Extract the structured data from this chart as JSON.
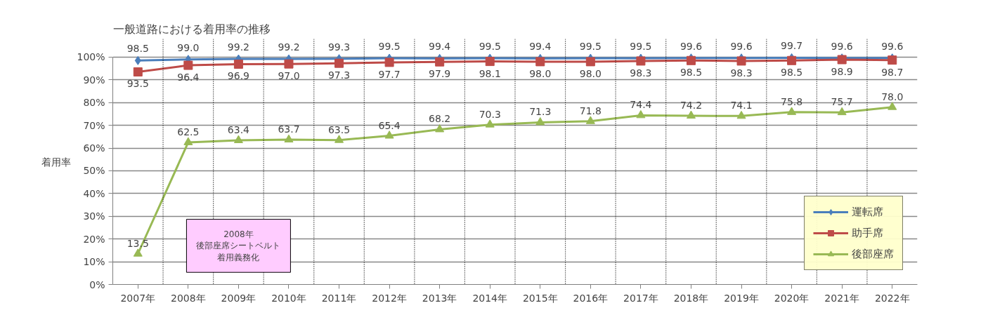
{
  "chart_data": {
    "type": "line",
    "title": "一般道路における着用率の推移",
    "ylabel": "着用率",
    "categories": [
      "2007年",
      "2008年",
      "2009年",
      "2010年",
      "2011年",
      "2012年",
      "2013年",
      "2014年",
      "2015年",
      "2016年",
      "2017年",
      "2018年",
      "2019年",
      "2020年",
      "2021年",
      "2022年"
    ],
    "series": [
      {
        "name": "運転席",
        "color": "#4a7ebb",
        "marker": "diamond",
        "values": [
          98.5,
          99.0,
          99.2,
          99.2,
          99.3,
          99.5,
          99.4,
          99.5,
          99.4,
          99.5,
          99.5,
          99.6,
          99.6,
          99.7,
          99.6,
          99.6
        ],
        "value_labels": [
          "98.5",
          "99.0",
          "99.2",
          "99.2",
          "99.3",
          "99.5",
          "99.4",
          "99.5",
          "99.4",
          "99.5",
          "99.5",
          "99.6",
          "99.6",
          "99.7",
          "99.6",
          "99.6"
        ]
      },
      {
        "name": "助手席",
        "color": "#be4b48",
        "marker": "square",
        "values": [
          93.5,
          96.4,
          96.9,
          97.0,
          97.3,
          97.7,
          97.9,
          98.1,
          98.0,
          98.0,
          98.3,
          98.5,
          98.3,
          98.5,
          98.9,
          98.7
        ],
        "value_labels": [
          "93.5",
          "96.4",
          "96.9",
          "97.0",
          "97.3",
          "97.7",
          "97.9",
          "98.1",
          "98.0",
          "98.0",
          "98.3",
          "98.5",
          "98.3",
          "98.5",
          "98.9",
          "98.7"
        ]
      },
      {
        "name": "後部座席",
        "color": "#98b954",
        "marker": "triangle",
        "values": [
          13.5,
          62.5,
          63.4,
          63.7,
          63.5,
          65.4,
          68.2,
          70.3,
          71.3,
          71.8,
          74.4,
          74.2,
          74.1,
          75.8,
          75.7,
          78.0
        ],
        "value_labels": [
          "13.5",
          "62.5",
          "63.4",
          "63.7",
          "63.5",
          "65.4",
          "68.2",
          "70.3",
          "71.3",
          "71.8",
          "74.4",
          "74.2",
          "74.1",
          "75.8",
          "75.7",
          "78.0"
        ]
      }
    ],
    "ylim": [
      0,
      100
    ],
    "yticks": [
      {
        "value": 0,
        "label": "0%"
      },
      {
        "value": 10,
        "label": "10%"
      },
      {
        "value": 20,
        "label": "20%"
      },
      {
        "value": 30,
        "label": "30%"
      },
      {
        "value": 40,
        "label": "40%"
      },
      {
        "value": 50,
        "label": "50%"
      },
      {
        "value": 60,
        "label": "60%"
      },
      {
        "value": 70,
        "label": "70%"
      },
      {
        "value": 80,
        "label": "80%"
      },
      {
        "value": 90,
        "label": "90%"
      },
      {
        "value": 100,
        "label": "100%"
      }
    ],
    "grid": true,
    "legend": "bottom right",
    "line_style": "solid",
    "annotations": [
      "2008年",
      "後部座席シートベルト",
      "着用義務化"
    ]
  }
}
